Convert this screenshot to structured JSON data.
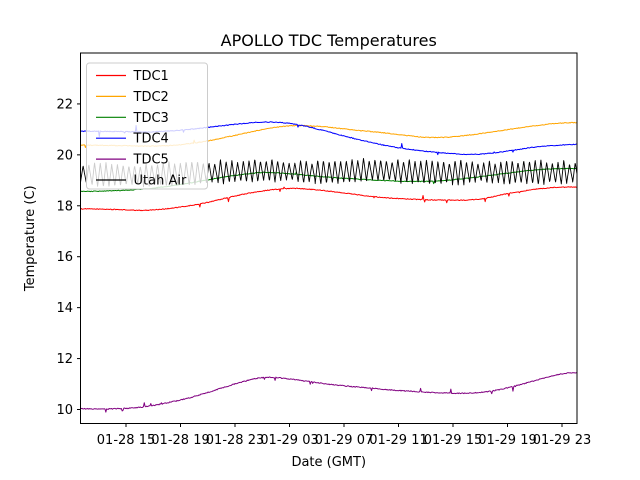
{
  "figure": {
    "title": "APOLLO TDC Temperatures",
    "xlabel": "Date (GMT)",
    "ylabel": "Temperature (C)"
  },
  "chart_data": {
    "type": "line",
    "title": "APOLLO TDC Temperatures",
    "xlabel": "Date (GMT)",
    "ylabel": "Temperature (C)",
    "grid": false,
    "legend_position": "upper left",
    "legend_entries": [
      "TDC1",
      "TDC2",
      "TDC3",
      "TDC4",
      "TDC5",
      "Utah Air"
    ],
    "x_unit": "hours since 01-28 00:00 GMT",
    "x_range": [
      11.66,
      48.1
    ],
    "ylim": [
      9.45,
      24.0
    ],
    "y_ticks": [
      10,
      12,
      14,
      16,
      18,
      20,
      22
    ],
    "x_ticks": [
      {
        "t": 15,
        "label": "01-28 15"
      },
      {
        "t": 19,
        "label": "01-28 19"
      },
      {
        "t": 23,
        "label": "01-28 23"
      },
      {
        "t": 27,
        "label": "01-29 03"
      },
      {
        "t": 31,
        "label": "01-29 07"
      },
      {
        "t": 35,
        "label": "01-29 11"
      },
      {
        "t": 39,
        "label": "01-29 15"
      },
      {
        "t": 43,
        "label": "01-29 19"
      },
      {
        "t": 47,
        "label": "01-29 23"
      }
    ],
    "series": [
      {
        "name": "TDC1",
        "color": "#ff0000",
        "noise": 0.015,
        "spike_p": 0.012,
        "spike_mag": 0.16,
        "points": [
          [
            11.66,
            17.88
          ],
          [
            13,
            17.87
          ],
          [
            14.5,
            17.85
          ],
          [
            16,
            17.82
          ],
          [
            17.5,
            17.86
          ],
          [
            19,
            17.95
          ],
          [
            20.5,
            18.08
          ],
          [
            22,
            18.26
          ],
          [
            23.5,
            18.44
          ],
          [
            25,
            18.58
          ],
          [
            26.3,
            18.66
          ],
          [
            27.5,
            18.68
          ],
          [
            28.5,
            18.65
          ],
          [
            30,
            18.57
          ],
          [
            31.5,
            18.47
          ],
          [
            33,
            18.37
          ],
          [
            34.5,
            18.3
          ],
          [
            36,
            18.26
          ],
          [
            37.5,
            18.23
          ],
          [
            39,
            18.22
          ],
          [
            40.3,
            18.23
          ],
          [
            41.5,
            18.31
          ],
          [
            43,
            18.48
          ],
          [
            44.5,
            18.61
          ],
          [
            46,
            18.7
          ],
          [
            47.2,
            18.73
          ],
          [
            48.1,
            18.74
          ]
        ]
      },
      {
        "name": "TDC2",
        "color": "#ffa500",
        "noise": 0.015,
        "spike_p": 0.012,
        "spike_mag": 0.18,
        "points": [
          [
            11.66,
            20.38
          ],
          [
            13.5,
            20.37
          ],
          [
            15,
            20.36
          ],
          [
            16.5,
            20.34
          ],
          [
            18,
            20.36
          ],
          [
            19.5,
            20.43
          ],
          [
            21,
            20.55
          ],
          [
            22.5,
            20.71
          ],
          [
            24,
            20.88
          ],
          [
            25.5,
            21.04
          ],
          [
            26.8,
            21.13
          ],
          [
            28,
            21.15
          ],
          [
            29.2,
            21.12
          ],
          [
            30.5,
            21.05
          ],
          [
            32,
            20.96
          ],
          [
            33.5,
            20.89
          ],
          [
            35,
            20.8
          ],
          [
            36.5,
            20.71
          ],
          [
            37.8,
            20.68
          ],
          [
            39,
            20.71
          ],
          [
            40.5,
            20.8
          ],
          [
            42,
            20.91
          ],
          [
            43.5,
            21.03
          ],
          [
            45,
            21.14
          ],
          [
            46.5,
            21.23
          ],
          [
            47.5,
            21.26
          ],
          [
            48.1,
            21.27
          ]
        ]
      },
      {
        "name": "TDC3",
        "color": "#008000",
        "noise": 0.013,
        "spike_p": 0.008,
        "spike_mag": 0.12,
        "points": [
          [
            11.66,
            18.56
          ],
          [
            13.5,
            18.58
          ],
          [
            15,
            18.61
          ],
          [
            16.5,
            18.67
          ],
          [
            18,
            18.76
          ],
          [
            19.5,
            18.88
          ],
          [
            21,
            19.02
          ],
          [
            22.5,
            19.15
          ],
          [
            24,
            19.26
          ],
          [
            25.2,
            19.31
          ],
          [
            26.5,
            19.28
          ],
          [
            28,
            19.21
          ],
          [
            29.5,
            19.14
          ],
          [
            31,
            19.08
          ],
          [
            32.5,
            19.03
          ],
          [
            34,
            18.99
          ],
          [
            35.5,
            18.96
          ],
          [
            37,
            18.96
          ],
          [
            38.5,
            19.0
          ],
          [
            40,
            19.08
          ],
          [
            41.5,
            19.18
          ],
          [
            43,
            19.28
          ],
          [
            44.5,
            19.38
          ],
          [
            46,
            19.44
          ],
          [
            47.3,
            19.46
          ],
          [
            48.1,
            19.47
          ]
        ]
      },
      {
        "name": "TDC4",
        "color": "#0000ff",
        "noise": 0.015,
        "spike_p": 0.014,
        "spike_mag": 0.2,
        "points": [
          [
            11.66,
            20.93
          ],
          [
            13.5,
            20.92
          ],
          [
            15,
            20.91
          ],
          [
            16.5,
            20.9
          ],
          [
            18,
            20.93
          ],
          [
            19.5,
            20.99
          ],
          [
            21,
            21.08
          ],
          [
            22.5,
            21.17
          ],
          [
            24,
            21.25
          ],
          [
            25.2,
            21.29
          ],
          [
            26.3,
            21.27
          ],
          [
            27.3,
            21.21
          ],
          [
            28.3,
            21.11
          ],
          [
            29.3,
            20.98
          ],
          [
            30.3,
            20.84
          ],
          [
            31.3,
            20.7
          ],
          [
            32.3,
            20.57
          ],
          [
            33.3,
            20.45
          ],
          [
            34.5,
            20.32
          ],
          [
            35.8,
            20.22
          ],
          [
            37,
            20.14
          ],
          [
            38.2,
            20.08
          ],
          [
            39.5,
            20.03
          ],
          [
            40.5,
            20.02
          ],
          [
            41.5,
            20.05
          ],
          [
            42.5,
            20.11
          ],
          [
            43.5,
            20.19
          ],
          [
            44.5,
            20.27
          ],
          [
            45.5,
            20.33
          ],
          [
            46.5,
            20.37
          ],
          [
            47.5,
            20.4
          ],
          [
            48.1,
            20.41
          ]
        ]
      },
      {
        "name": "TDC5",
        "color": "#800080",
        "noise": 0.018,
        "spike_p": 0.022,
        "spike_mag": 0.16,
        "points": [
          [
            11.66,
            10.03
          ],
          [
            13,
            10.02
          ],
          [
            14.3,
            10.03
          ],
          [
            15.5,
            10.06
          ],
          [
            16.8,
            10.14
          ],
          [
            18,
            10.26
          ],
          [
            19.5,
            10.44
          ],
          [
            21,
            10.67
          ],
          [
            22.5,
            10.92
          ],
          [
            23.8,
            11.12
          ],
          [
            24.8,
            11.24
          ],
          [
            25.8,
            11.26
          ],
          [
            26.8,
            11.21
          ],
          [
            28,
            11.13
          ],
          [
            29.5,
            11.02
          ],
          [
            31,
            10.93
          ],
          [
            32.5,
            10.86
          ],
          [
            34,
            10.79
          ],
          [
            35.5,
            10.73
          ],
          [
            37,
            10.68
          ],
          [
            38.5,
            10.65
          ],
          [
            39.8,
            10.64
          ],
          [
            41,
            10.67
          ],
          [
            42.2,
            10.76
          ],
          [
            43.5,
            10.92
          ],
          [
            44.8,
            11.1
          ],
          [
            46,
            11.28
          ],
          [
            47,
            11.4
          ],
          [
            47.7,
            11.44
          ],
          [
            48.1,
            11.45
          ]
        ]
      },
      {
        "name": "Utah Air",
        "color": "#000000",
        "noise": 0.012,
        "spike_p": 0,
        "spike_mag": 0,
        "oscillation": {
          "period_hours": 0.42,
          "amplitude": 0.42
        },
        "points": [
          [
            11.66,
            19.25
          ],
          [
            14,
            19.2
          ],
          [
            17,
            19.22
          ],
          [
            20,
            19.28
          ],
          [
            23,
            19.34
          ],
          [
            25.5,
            19.38
          ],
          [
            28,
            19.33
          ],
          [
            30.5,
            19.33
          ],
          [
            32.5,
            19.4
          ],
          [
            34.5,
            19.37
          ],
          [
            36.5,
            19.33
          ],
          [
            38.5,
            19.3
          ],
          [
            40.5,
            19.32
          ],
          [
            42.5,
            19.3
          ],
          [
            44.5,
            19.32
          ],
          [
            46.5,
            19.3
          ],
          [
            48.1,
            19.3
          ]
        ]
      }
    ]
  }
}
